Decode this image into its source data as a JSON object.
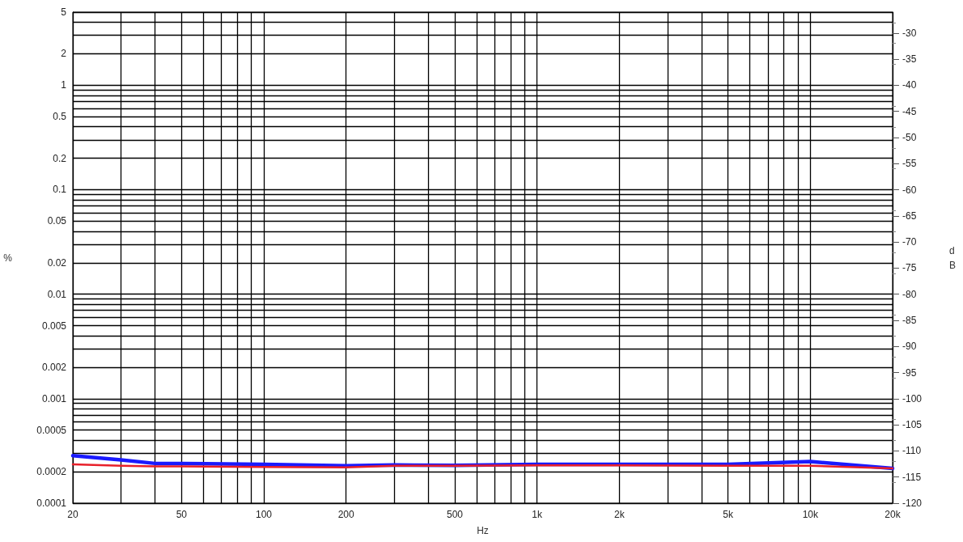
{
  "chart_data": {
    "type": "line",
    "xlabel": "Hz",
    "ylabel": "%",
    "y2label": "dB",
    "x": [
      20,
      30,
      40,
      50,
      100,
      200,
      300,
      500,
      1000,
      2000,
      5000,
      10000,
      20000
    ],
    "series": [
      {
        "color": "#1a1aff",
        "values": [
          0.000285,
          0.00026,
          0.00024,
          0.00024,
          0.000235,
          0.000228,
          0.000232,
          0.00023,
          0.000235,
          0.000235,
          0.000235,
          0.00025,
          0.000215
        ]
      },
      {
        "color": "#e8202a",
        "values": [
          0.000235,
          0.000228,
          0.000225,
          0.000225,
          0.000222,
          0.00022,
          0.000228,
          0.000228,
          0.00023,
          0.00023,
          0.000228,
          0.000228,
          0.000215
        ]
      }
    ],
    "log": "xy",
    "xlim": [
      20,
      20000
    ],
    "xticks": [
      20,
      {
        "value": 30,
        "label": null
      },
      {
        "value": 40,
        "label": null
      },
      50,
      {
        "value": 60,
        "label": null
      },
      {
        "value": 70,
        "label": null
      },
      {
        "value": 80,
        "label": null
      },
      {
        "value": 90,
        "label": null
      },
      100,
      200,
      {
        "value": 300,
        "label": null
      },
      {
        "value": 400,
        "label": null
      },
      500,
      {
        "value": 600,
        "label": null
      },
      {
        "value": 700,
        "label": null
      },
      {
        "value": 800,
        "label": null
      },
      {
        "value": 900,
        "label": null
      },
      {
        "value": 1000,
        "label": "1k"
      },
      {
        "value": 2000,
        "label": "2k"
      },
      {
        "value": 3000,
        "label": null
      },
      {
        "value": 4000,
        "label": null
      },
      {
        "value": 5000,
        "label": "5k"
      },
      {
        "value": 6000,
        "label": null
      },
      {
        "value": 7000,
        "label": null
      },
      {
        "value": 8000,
        "label": null
      },
      {
        "value": 9000,
        "label": null
      },
      {
        "value": 10000,
        "label": "10k"
      },
      {
        "value": 20000,
        "label": "20k"
      }
    ],
    "ylim": [
      0.0001,
      5
    ],
    "yticks": [
      0.0001,
      0.0002,
      {
        "value": 0.0003,
        "label": null
      },
      {
        "value": 0.0004,
        "label": null
      },
      0.0005,
      {
        "value": 0.0006,
        "label": null
      },
      {
        "value": 0.0007,
        "label": null
      },
      {
        "value": 0.0008,
        "label": null
      },
      {
        "value": 0.0009,
        "label": null
      },
      0.001,
      0.002,
      {
        "value": 0.003,
        "label": null
      },
      {
        "value": 0.004,
        "label": null
      },
      0.005,
      {
        "value": 0.006,
        "label": null
      },
      {
        "value": 0.007,
        "label": null
      },
      {
        "value": 0.008,
        "label": null
      },
      {
        "value": 0.009,
        "label": null
      },
      0.01,
      0.02,
      {
        "value": 0.03,
        "label": null
      },
      {
        "value": 0.04,
        "label": null
      },
      0.05,
      {
        "value": 0.06,
        "label": null
      },
      {
        "value": 0.07,
        "label": null
      },
      {
        "value": 0.08,
        "label": null
      },
      {
        "value": 0.09,
        "label": null
      },
      0.1,
      0.2,
      {
        "value": 0.3,
        "label": null
      },
      {
        "value": 0.4,
        "label": null
      },
      0.5,
      {
        "value": 0.6,
        "label": null
      },
      {
        "value": 0.7,
        "label": null
      },
      {
        "value": 0.8,
        "label": null
      },
      {
        "value": 0.9,
        "label": null
      },
      1,
      2,
      {
        "value": 3,
        "label": null
      },
      {
        "value": 4,
        "label": null
      },
      5
    ],
    "y2lim": [
      -120,
      -26
    ],
    "y2ticks": [
      -120,
      -115,
      -110,
      -105,
      -100,
      -95,
      -90,
      -85,
      -80,
      -75,
      -70,
      -65,
      -60,
      -55,
      -50,
      -45,
      -40,
      -35,
      -30
    ],
    "grid": true,
    "marker": "none",
    "line_style": "solid"
  }
}
